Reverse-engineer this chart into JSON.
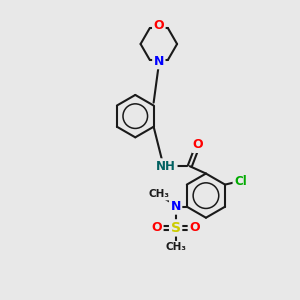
{
  "background_color": "#e8e8e8",
  "bond_color": "#1a1a1a",
  "atom_colors": {
    "O": "#ff0000",
    "N": "#0000ff",
    "Cl": "#00aa00",
    "S": "#cccc00",
    "NH": "#006060",
    "C": "#1a1a1a"
  },
  "figsize": [
    3.0,
    3.0
  ],
  "dpi": 100
}
